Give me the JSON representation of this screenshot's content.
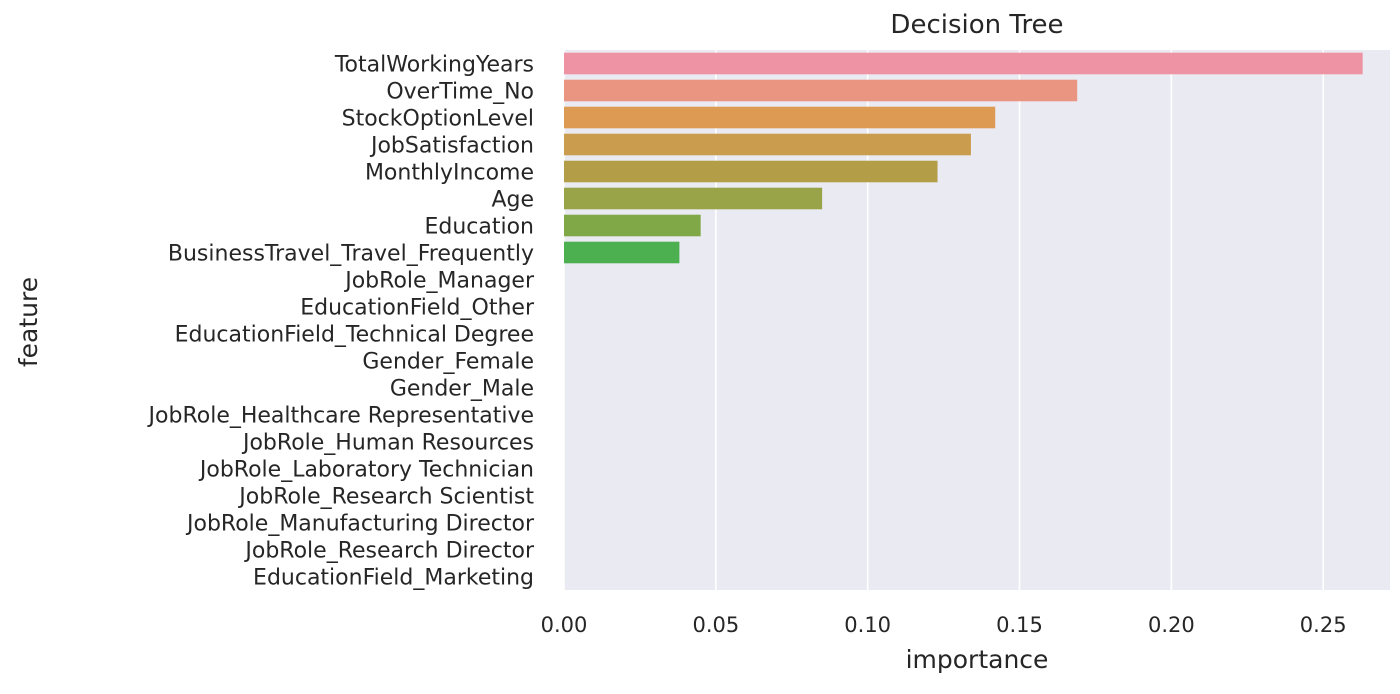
{
  "chart_data": {
    "type": "bar",
    "orientation": "horizontal",
    "title": "Decision Tree",
    "xlabel": "importance",
    "ylabel": "feature",
    "xlim": [
      0,
      0.272
    ],
    "x_ticks": [
      "0.00",
      "0.05",
      "0.10",
      "0.15",
      "0.20",
      "0.25"
    ],
    "grid": true,
    "categories": [
      "TotalWorkingYears",
      "OverTime_No",
      "StockOptionLevel",
      "JobSatisfaction",
      "MonthlyIncome",
      "Age",
      "Education",
      "BusinessTravel_Travel_Frequently",
      "JobRole_Manager",
      "EducationField_Other",
      "EducationField_Technical Degree",
      "Gender_Female",
      "Gender_Male",
      "JobRole_Healthcare Representative",
      "JobRole_Human Resources",
      "JobRole_Laboratory Technician",
      "JobRole_Research Scientist",
      "JobRole_Manufacturing Director",
      "JobRole_Research Director",
      "EducationField_Marketing"
    ],
    "values": [
      0.263,
      0.169,
      0.142,
      0.134,
      0.123,
      0.085,
      0.045,
      0.038,
      0,
      0,
      0,
      0,
      0,
      0,
      0,
      0,
      0,
      0,
      0,
      0
    ],
    "colors": [
      "#ed93a3",
      "#ea9482",
      "#dc9a52",
      "#c99d4d",
      "#b39e47",
      "#99a347",
      "#80a847",
      "#4caf50",
      "#3aad6e",
      "#3aab85",
      "#39aa93",
      "#3ba89f",
      "#3da6aa",
      "#3ea3b6",
      "#429fc3",
      "#5a9ad6",
      "#8a92e3",
      "#b389e6",
      "#d57fdd",
      "#e885c9"
    ],
    "background": "#eaeaf2",
    "grid_color": "#ffffff"
  }
}
